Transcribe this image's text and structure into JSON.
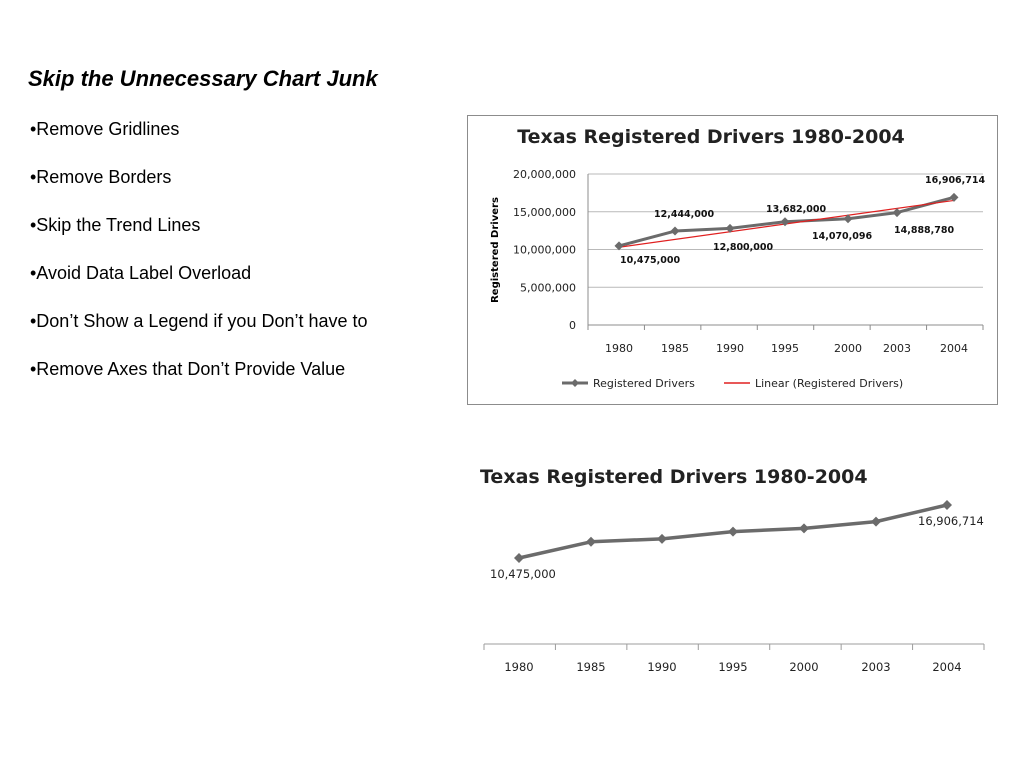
{
  "slide": {
    "title": "Skip the Unnecessary Chart Junk",
    "bullets": [
      "•Remove Gridlines",
      "•Remove Borders",
      "•Skip the Trend Lines",
      "•Avoid Data Label Overload",
      "•Don’t Show a Legend if you Don’t have to",
      "•Remove Axes that Don’t Provide Value"
    ]
  },
  "colors": {
    "series": "#6b6b6b",
    "trend": "#e02020",
    "grid": "#b9b9b9",
    "frame": "#8c8c8c"
  },
  "chart_data": [
    {
      "type": "line",
      "title": "Texas Registered Drivers 1980-2004",
      "ylabel": "Registered Drivers",
      "xlabel": "",
      "categories": [
        "1980",
        "1985",
        "1990",
        "1995",
        "2000",
        "2003",
        "2004"
      ],
      "series": [
        {
          "name": "Registered Drivers",
          "values": [
            10475000,
            12444000,
            12800000,
            13682000,
            14070096,
            14888780,
            16906714
          ],
          "data_labels": [
            "10,475,000",
            "12,444,000",
            "12,800,000",
            "13,682,000",
            "14,070,096",
            "14,888,780",
            "16,906,714"
          ]
        }
      ],
      "trendline": {
        "name": "Linear (Registered Drivers)",
        "start": 10300000,
        "end": 16500000
      },
      "ylim": [
        0,
        20000000
      ],
      "yticks": [
        0,
        5000000,
        10000000,
        15000000,
        20000000
      ],
      "ytick_labels": [
        "0",
        "5,000,000",
        "10,000,000",
        "15,000,000",
        "20,000,000"
      ],
      "grid": true,
      "border": true,
      "legend": "bottom"
    },
    {
      "type": "line",
      "title": "Texas Registered Drivers 1980-2004",
      "xlabel": "",
      "ylabel": "",
      "categories": [
        "1980",
        "1985",
        "1990",
        "1995",
        "2000",
        "2003",
        "2004"
      ],
      "series": [
        {
          "values": [
            10475000,
            12444000,
            12800000,
            13682000,
            14070096,
            14888780,
            16906714
          ],
          "data_labels": [
            "10,475,000",
            "",
            "",
            "",
            "",
            "",
            "16,906,714"
          ]
        }
      ],
      "ylim": [
        0,
        20000000
      ],
      "grid": false,
      "border": false,
      "legend": "none"
    }
  ]
}
